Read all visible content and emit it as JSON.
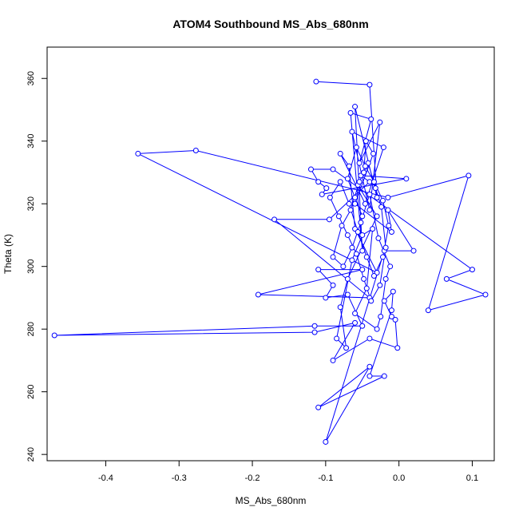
{
  "chart_data": {
    "type": "line",
    "title": "ATOM4 Southbound MS_Abs_680nm",
    "xlabel": "MS_Abs_680nm",
    "ylabel": "Theta (K)",
    "xlim": [
      -0.48,
      0.13
    ],
    "ylim": [
      238,
      370
    ],
    "x_ticks": [
      -0.4,
      -0.3,
      -0.2,
      -0.1,
      0.0,
      0.1
    ],
    "x_tick_labels": [
      "-0.4",
      "-0.3",
      "-0.2",
      "-0.1",
      "0.0",
      "0.1"
    ],
    "y_ticks": [
      240,
      260,
      280,
      300,
      320,
      340,
      360
    ],
    "y_tick_labels": [
      "240",
      "260",
      "280",
      "300",
      "320",
      "340",
      "360"
    ],
    "grid": false,
    "series_color": "#0000ff",
    "points": [
      [
        -0.113,
        359
      ],
      [
        -0.04,
        358
      ],
      [
        -0.03,
        322
      ],
      [
        -0.06,
        351
      ],
      [
        -0.05,
        305
      ],
      [
        -0.066,
        349
      ],
      [
        -0.038,
        347
      ],
      [
        -0.054,
        333
      ],
      [
        -0.026,
        346
      ],
      [
        -0.04,
        318
      ],
      [
        -0.064,
        343
      ],
      [
        -0.021,
        338
      ],
      [
        -0.046,
        320
      ],
      [
        -0.08,
        336
      ],
      [
        -0.068,
        332
      ],
      [
        -0.06,
        312
      ],
      [
        -0.03,
        298
      ],
      [
        -0.356,
        336
      ],
      [
        -0.277,
        337
      ],
      [
        -0.015,
        322
      ],
      [
        0.095,
        329
      ],
      [
        0.04,
        286
      ],
      [
        0.118,
        291
      ],
      [
        0.065,
        296
      ],
      [
        0.1,
        299
      ],
      [
        -0.09,
        331
      ],
      [
        -0.12,
        331
      ],
      [
        -0.11,
        327
      ],
      [
        -0.099,
        325
      ],
      [
        -0.105,
        323
      ],
      [
        0.01,
        328
      ],
      [
        -0.052,
        329
      ],
      [
        -0.04,
        327
      ],
      [
        -0.095,
        315
      ],
      [
        -0.17,
        315
      ],
      [
        -0.04,
        290
      ],
      [
        -0.192,
        291
      ],
      [
        -0.05,
        299
      ],
      [
        -0.11,
        299
      ],
      [
        -0.09,
        294
      ],
      [
        -0.1,
        290
      ],
      [
        -0.07,
        291
      ],
      [
        -0.05,
        281
      ],
      [
        -0.115,
        281
      ],
      [
        -0.47,
        278
      ],
      [
        -0.115,
        279
      ],
      [
        -0.06,
        282
      ],
      [
        -0.09,
        270
      ],
      [
        -0.04,
        277
      ],
      [
        -0.002,
        274
      ],
      [
        -0.005,
        283
      ],
      [
        -0.01,
        284
      ],
      [
        -0.02,
        289
      ],
      [
        -0.008,
        292
      ],
      [
        -0.01,
        286
      ],
      [
        -0.04,
        265
      ],
      [
        -0.02,
        265
      ],
      [
        -0.11,
        255
      ],
      [
        -0.04,
        268
      ],
      [
        -0.1,
        244
      ],
      [
        -0.02,
        305
      ],
      [
        0.02,
        305
      ],
      [
        -0.015,
        318
      ],
      [
        -0.01,
        311
      ],
      [
        -0.06,
        320
      ],
      [
        -0.035,
        336
      ],
      [
        -0.045,
        340
      ],
      [
        -0.048,
        330
      ],
      [
        -0.056,
        326
      ],
      [
        -0.03,
        316
      ],
      [
        -0.07,
        296
      ],
      [
        -0.08,
        287
      ],
      [
        -0.072,
        274
      ],
      [
        -0.085,
        277
      ],
      [
        -0.064,
        302
      ],
      [
        -0.05,
        310
      ],
      [
        -0.036,
        312
      ],
      [
        -0.044,
        293
      ],
      [
        -0.06,
        285
      ],
      [
        -0.03,
        280
      ],
      [
        -0.025,
        284
      ],
      [
        -0.018,
        296
      ],
      [
        -0.012,
        300
      ],
      [
        -0.028,
        309
      ],
      [
        -0.04,
        323
      ],
      [
        -0.052,
        314
      ],
      [
        -0.064,
        306
      ],
      [
        -0.076,
        300
      ],
      [
        -0.09,
        303
      ],
      [
        -0.078,
        313
      ],
      [
        -0.066,
        318
      ],
      [
        -0.054,
        327
      ],
      [
        -0.042,
        333
      ],
      [
        -0.032,
        325
      ],
      [
        -0.024,
        319
      ],
      [
        -0.018,
        306
      ],
      [
        -0.026,
        294
      ],
      [
        -0.038,
        289
      ],
      [
        -0.048,
        296
      ],
      [
        -0.058,
        304
      ],
      [
        -0.07,
        310
      ],
      [
        -0.082,
        316
      ],
      [
        -0.094,
        322
      ],
      [
        -0.08,
        327
      ],
      [
        -0.068,
        320
      ],
      [
        -0.056,
        311
      ],
      [
        -0.044,
        303
      ],
      [
        -0.034,
        297
      ],
      [
        -0.022,
        303
      ],
      [
        -0.014,
        313
      ],
      [
        -0.022,
        321
      ],
      [
        -0.034,
        327
      ],
      [
        -0.046,
        332
      ],
      [
        -0.058,
        338
      ],
      [
        -0.07,
        328
      ],
      [
        -0.06,
        322
      ],
      [
        -0.05,
        316
      ]
    ]
  }
}
